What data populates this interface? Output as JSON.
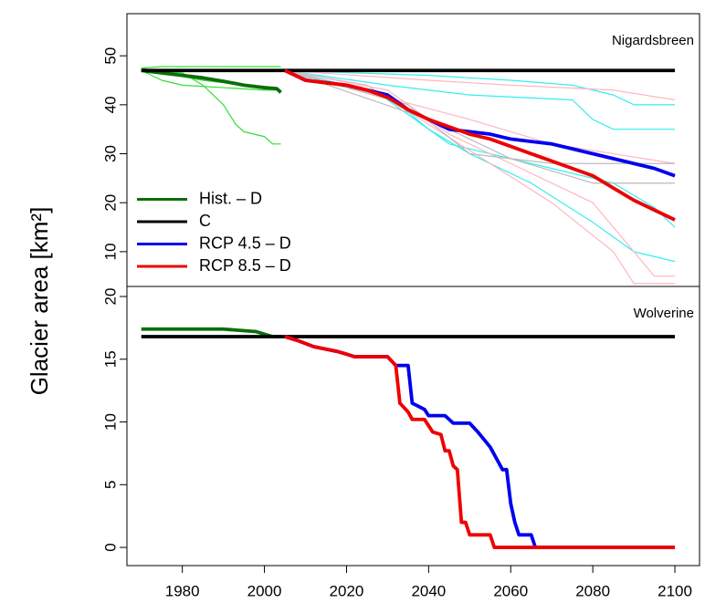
{
  "chart_data": [
    {
      "type": "line",
      "title": "Nigardsbreen",
      "ylabel": "Glacier area [km²]",
      "legend": "bottomleft",
      "xlim": [
        1966.5,
        2106
      ],
      "ylim": [
        2.9,
        58.6
      ],
      "yticks": [
        10,
        20,
        30,
        40,
        50
      ],
      "series": [
        {
          "style": "thin",
          "color": "#33dd33",
          "x": [
            1970,
            1975,
            1980,
            1990,
            2000,
            2004
          ],
          "values": [
            47.5,
            47.8,
            47.8,
            47.8,
            47.8,
            47.8
          ]
        },
        {
          "style": "thin",
          "color": "#33dd33",
          "x": [
            1970,
            1975,
            1980,
            1990,
            2000,
            2004
          ],
          "values": [
            47,
            45,
            44,
            43.5,
            43,
            43
          ]
        },
        {
          "style": "thin",
          "color": "#33dd33",
          "x": [
            1970,
            1980,
            1985,
            1990,
            1993,
            1995,
            2000,
            2002,
            2004
          ],
          "values": [
            47,
            46.5,
            44,
            40,
            36,
            34.5,
            33.5,
            32,
            32
          ]
        },
        {
          "style": "thin",
          "color": "#33dd33",
          "x": [
            1970,
            1975,
            1985,
            1995,
            2004
          ],
          "values": [
            47.5,
            46.5,
            45,
            44,
            43
          ]
        },
        {
          "style": "thin",
          "color": "#33eeee",
          "x": [
            2005,
            2040,
            2060,
            2075,
            2085,
            2090,
            2100
          ],
          "values": [
            47,
            46,
            45,
            44,
            42,
            40,
            40
          ]
        },
        {
          "style": "thin",
          "color": "#33eeee",
          "x": [
            2005,
            2030,
            2050,
            2075,
            2080,
            2085,
            2100
          ],
          "values": [
            47,
            44,
            42,
            41,
            37,
            35,
            35
          ]
        },
        {
          "style": "thin",
          "color": "#33eeee",
          "x": [
            2005,
            2025,
            2035,
            2045,
            2055,
            2070,
            2085,
            2095,
            2100
          ],
          "values": [
            47,
            44,
            38,
            32,
            30,
            27,
            24,
            19,
            15
          ]
        },
        {
          "style": "thin",
          "color": "#33eeee",
          "x": [
            2005,
            2030,
            2040,
            2050,
            2065,
            2080,
            2090,
            2100
          ],
          "values": [
            47,
            42,
            35,
            30,
            24,
            16,
            10,
            8
          ]
        },
        {
          "style": "thin",
          "color": "#ffb6c1",
          "x": [
            2005,
            2040,
            2060,
            2085,
            2100
          ],
          "values": [
            47,
            45,
            44,
            43,
            41
          ]
        },
        {
          "style": "thin",
          "color": "#ffb6c1",
          "x": [
            2005,
            2030,
            2045,
            2060,
            2080,
            2090,
            2095,
            2100
          ],
          "values": [
            47,
            43,
            34,
            28,
            20,
            10,
            5,
            5
          ]
        },
        {
          "style": "thin",
          "color": "#ffb6c1",
          "x": [
            2005,
            2025,
            2040,
            2055,
            2070,
            2085,
            2090,
            2100
          ],
          "values": [
            47,
            44,
            36,
            28,
            20,
            10,
            3.5,
            3.5
          ]
        },
        {
          "style": "thin",
          "color": "#ffb6c1",
          "x": [
            2005,
            2050,
            2070,
            2100
          ],
          "values": [
            47,
            37,
            32,
            28
          ]
        },
        {
          "style": "thin",
          "color": "#bbbbbb",
          "x": [
            2005,
            2035,
            2050,
            2070,
            2100
          ],
          "values": [
            47,
            40,
            30,
            28,
            28
          ]
        },
        {
          "style": "thin",
          "color": "#bbbbbb",
          "x": [
            2005,
            2040,
            2060,
            2080,
            2100
          ],
          "values": [
            47,
            37,
            29,
            24,
            24
          ]
        },
        {
          "name": "Hist. – D",
          "color": "#0b6e0b",
          "x": [
            1970,
            1975,
            1980,
            1985,
            1990,
            1995,
            2000,
            2003,
            2004
          ],
          "values": [
            47,
            46.5,
            46,
            45.5,
            44.8,
            44,
            43.5,
            43.3,
            42.5
          ]
        },
        {
          "name": "C",
          "color": "#000000",
          "x": [
            1970,
            2100
          ],
          "values": [
            47,
            47
          ]
        },
        {
          "name": "RCP 4.5 – D",
          "color": "#0000ee",
          "x": [
            2005,
            2010,
            2015,
            2020,
            2025,
            2030,
            2035,
            2040,
            2045,
            2050,
            2055,
            2060,
            2065,
            2070,
            2075,
            2080,
            2085,
            2090,
            2095,
            2100
          ],
          "values": [
            47,
            45,
            44.5,
            44,
            43,
            42,
            39,
            37,
            35,
            34.5,
            34,
            33,
            32.5,
            32,
            31,
            30,
            29,
            28,
            27,
            25.5
          ]
        },
        {
          "name": "RCP 8.5 – D",
          "color": "#ee0000",
          "x": [
            2005,
            2010,
            2015,
            2020,
            2025,
            2030,
            2035,
            2040,
            2045,
            2050,
            2055,
            2060,
            2065,
            2070,
            2075,
            2080,
            2085,
            2090,
            2095,
            2100
          ],
          "values": [
            47,
            45,
            44.5,
            44,
            43,
            41.5,
            39,
            37,
            35.5,
            34,
            33,
            31.5,
            30,
            28.5,
            27,
            25.5,
            23,
            20.5,
            18.5,
            16.5
          ]
        }
      ]
    },
    {
      "type": "line",
      "title": "Wolverine",
      "xlim": [
        1966.5,
        2106
      ],
      "ylim": [
        -1.45,
        20.8
      ],
      "yticks": [
        0,
        5,
        10,
        15,
        20
      ],
      "xticks": [
        1980,
        2000,
        2020,
        2040,
        2060,
        2080,
        2100
      ],
      "series": [
        {
          "color": "#0b6e0b",
          "x": [
            1970,
            1990,
            1998,
            2002,
            2004
          ],
          "values": [
            17.4,
            17.4,
            17.2,
            16.8,
            16.8
          ]
        },
        {
          "color": "#000000",
          "x": [
            1970,
            2100
          ],
          "values": [
            16.8,
            16.8
          ]
        },
        {
          "color": "#0000ee",
          "x": [
            2005,
            2008,
            2012,
            2018,
            2022,
            2030,
            2032,
            2035,
            2036,
            2039,
            2040,
            2044,
            2046,
            2050,
            2052,
            2055,
            2058,
            2059,
            2060,
            2061,
            2062,
            2065,
            2066,
            2100
          ],
          "values": [
            16.8,
            16.5,
            16,
            15.6,
            15.2,
            15.2,
            14.5,
            14.5,
            11.5,
            11,
            10.5,
            10.5,
            9.9,
            9.9,
            9.2,
            8,
            6.2,
            6.2,
            3.5,
            2,
            1,
            1,
            0,
            0
          ]
        },
        {
          "color": "#ee0000",
          "x": [
            2005,
            2008,
            2012,
            2018,
            2022,
            2030,
            2032,
            2033,
            2035,
            2036,
            2039,
            2041,
            2043,
            2044,
            2045,
            2046,
            2047,
            2048,
            2049,
            2050,
            2055,
            2056,
            2100
          ],
          "values": [
            16.8,
            16.5,
            16,
            15.6,
            15.2,
            15.2,
            14.5,
            11.5,
            10.8,
            10.2,
            10.2,
            9.2,
            9,
            7.7,
            7.7,
            6.5,
            6.2,
            2,
            2,
            1,
            1,
            0,
            0
          ]
        }
      ]
    }
  ]
}
